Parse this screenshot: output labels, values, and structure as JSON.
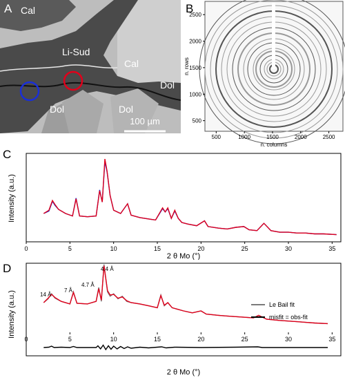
{
  "panels": {
    "a": {
      "letter": "A",
      "labels": [
        "Cal",
        "Li-Sud",
        "Cal",
        "Dol",
        "Dol",
        "Dol"
      ],
      "scalebar": "100 µm"
    },
    "b": {
      "letter": "B",
      "xlabel": "n. columns",
      "ylabel": "n. rows",
      "xticks": [
        500,
        1000,
        1500,
        2000,
        2500
      ],
      "yticks": [
        500,
        1000,
        1500,
        2000,
        2500
      ]
    },
    "c": {
      "letter": "C",
      "xlabel": "2 θ Mo (°)",
      "ylabel": "Intensity (a.u.)",
      "xticks": [
        0,
        5,
        10,
        15,
        20,
        25,
        30,
        35
      ]
    },
    "d": {
      "letter": "D",
      "xlabel": "2 θ Mo (°)",
      "ylabel": "Intensity (a.u.)",
      "xticks": [
        0,
        5,
        10,
        15,
        20,
        25,
        30,
        35
      ],
      "annotations": [
        "14 Å",
        "7 Å",
        "4.7 Å",
        "4.4 Å"
      ],
      "legend": [
        "Le Bail fit",
        "misfit = obs-fit"
      ]
    }
  },
  "chart_data": [
    {
      "type": "line",
      "xlim": [
        0,
        36
      ],
      "series": [
        {
          "color": "#1a2fd6",
          "x": [
            2,
            2.6,
            3.0,
            3.3,
            3.7,
            4.5,
            5.3,
            5.7,
            6.1,
            7,
            8,
            8.4,
            8.7,
            9.0,
            9.25,
            9.6,
            10,
            10.8,
            11.6,
            12,
            13,
            14.2,
            14.8,
            15.6,
            15.9,
            16.2,
            16.6,
            17,
            17.4,
            17.8,
            18.5,
            19.5,
            20.4,
            20.8,
            22,
            23,
            24,
            24.9,
            25.5,
            26.4,
            27.2,
            28,
            29,
            30,
            31,
            32,
            33,
            34,
            35.5
          ],
          "y": [
            0.28,
            0.31,
            0.43,
            0.38,
            0.33,
            0.28,
            0.25,
            0.47,
            0.25,
            0.24,
            0.25,
            0.57,
            0.42,
            0.92,
            0.79,
            0.5,
            0.32,
            0.28,
            0.4,
            0.26,
            0.23,
            0.21,
            0.2,
            0.34,
            0.3,
            0.34,
            0.22,
            0.31,
            0.22,
            0.17,
            0.15,
            0.13,
            0.19,
            0.12,
            0.1,
            0.09,
            0.11,
            0.12,
            0.08,
            0.07,
            0.16,
            0.07,
            0.05,
            0.05,
            0.04,
            0.04,
            0.03,
            0.03,
            0.02
          ]
        },
        {
          "color": "#e0001b",
          "x": [
            2,
            2.6,
            3.0,
            3.3,
            3.7,
            4.5,
            5.3,
            5.7,
            6.1,
            7,
            8,
            8.4,
            8.7,
            9.0,
            9.25,
            9.6,
            10,
            10.8,
            11.6,
            12,
            13,
            14.2,
            14.8,
            15.6,
            15.9,
            16.2,
            16.6,
            17,
            17.4,
            17.8,
            18.5,
            19.5,
            20.4,
            20.8,
            22,
            23,
            24,
            24.9,
            25.5,
            26.4,
            27.2,
            28,
            29,
            30,
            31,
            32,
            33,
            34,
            35.5
          ],
          "y": [
            0.28,
            0.32,
            0.44,
            0.39,
            0.33,
            0.28,
            0.25,
            0.46,
            0.25,
            0.24,
            0.25,
            0.56,
            0.42,
            0.95,
            0.8,
            0.5,
            0.32,
            0.28,
            0.4,
            0.26,
            0.23,
            0.21,
            0.2,
            0.35,
            0.3,
            0.35,
            0.22,
            0.32,
            0.22,
            0.17,
            0.15,
            0.13,
            0.19,
            0.12,
            0.1,
            0.09,
            0.11,
            0.12,
            0.08,
            0.07,
            0.16,
            0.07,
            0.05,
            0.05,
            0.04,
            0.04,
            0.03,
            0.03,
            0.02
          ]
        }
      ]
    },
    {
      "type": "line",
      "xlim": [
        0,
        36
      ],
      "series": [
        {
          "name": "Le Bail fit",
          "color": "#7a7a7a",
          "x": [
            2,
            2.5,
            2.9,
            3.3,
            4,
            5,
            5.4,
            5.8,
            7,
            8,
            8.3,
            8.6,
            8.9,
            9.3,
            9.6,
            10,
            10.5,
            11,
            11.5,
            12,
            13,
            14,
            15,
            15.4,
            15.8,
            16.2,
            16.7,
            17.2,
            18,
            19,
            20,
            20.6,
            22,
            23,
            24,
            25,
            26,
            26.6,
            27.5,
            29,
            30,
            31,
            32,
            33,
            34.5
          ],
          "y": [
            0.38,
            0.44,
            0.52,
            0.45,
            0.4,
            0.36,
            0.55,
            0.37,
            0.36,
            0.4,
            0.62,
            0.4,
            0.98,
            0.55,
            0.48,
            0.52,
            0.44,
            0.48,
            0.4,
            0.38,
            0.36,
            0.33,
            0.3,
            0.5,
            0.33,
            0.38,
            0.3,
            0.28,
            0.25,
            0.22,
            0.25,
            0.2,
            0.18,
            0.17,
            0.16,
            0.15,
            0.14,
            0.18,
            0.12,
            0.1,
            0.09,
            0.08,
            0.07,
            0.06,
            0.05
          ]
        },
        {
          "color": "#e0001b",
          "x": [
            2,
            2.5,
            2.9,
            3.3,
            4,
            5,
            5.4,
            5.8,
            7,
            8,
            8.3,
            8.6,
            8.9,
            9.3,
            9.6,
            10,
            10.5,
            11,
            11.5,
            12,
            13,
            14,
            15,
            15.4,
            15.8,
            16.2,
            16.7,
            17.2,
            18,
            19,
            20,
            20.6,
            22,
            23,
            24,
            25,
            26,
            26.6,
            27.5,
            29,
            30,
            31,
            32,
            33,
            34.5
          ],
          "y": [
            0.38,
            0.45,
            0.51,
            0.46,
            0.4,
            0.36,
            0.54,
            0.37,
            0.36,
            0.4,
            0.6,
            0.42,
            0.96,
            0.57,
            0.5,
            0.51,
            0.45,
            0.47,
            0.41,
            0.38,
            0.36,
            0.33,
            0.3,
            0.49,
            0.34,
            0.38,
            0.3,
            0.28,
            0.25,
            0.22,
            0.25,
            0.2,
            0.18,
            0.17,
            0.16,
            0.15,
            0.14,
            0.18,
            0.12,
            0.1,
            0.09,
            0.08,
            0.07,
            0.06,
            0.05
          ]
        },
        {
          "name": "misfit = obs-fit",
          "color": "#000000",
          "x": [
            2,
            2.6,
            2.9,
            3.2,
            4,
            5,
            5.4,
            5.8,
            7,
            8,
            8.2,
            8.5,
            8.8,
            9.1,
            9.4,
            9.7,
            10,
            10.4,
            10.8,
            11.2,
            11.6,
            12,
            13,
            14,
            15,
            15.5,
            16,
            17,
            20,
            24,
            26.5,
            27,
            30,
            34.5
          ],
          "y": [
            0,
            0.01,
            0.04,
            0,
            0.01,
            0,
            0.03,
            0,
            0,
            0,
            0.05,
            -0.04,
            0.07,
            -0.06,
            0.05,
            -0.05,
            0.04,
            -0.04,
            0.03,
            -0.03,
            0.02,
            -0.02,
            0.01,
            -0.01,
            0.01,
            0.02,
            -0.01,
            0.01,
            0,
            0.01,
            0.02,
            0,
            0,
            0
          ]
        }
      ]
    }
  ]
}
